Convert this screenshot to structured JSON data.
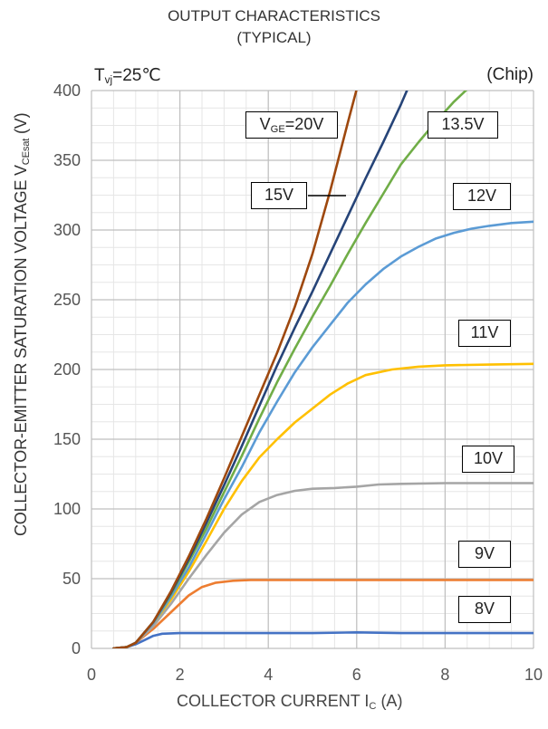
{
  "chart_data": {
    "type": "line",
    "title": "OUTPUT CHARACTERISTICS",
    "subtitle": "(TYPICAL)",
    "condition": {
      "prefix": "T",
      "sub": "vj",
      "suffix": "=25℃"
    },
    "note": "(Chip)",
    "xlabel": {
      "main": "COLLECTOR CURRENT  I",
      "sub": "C",
      "unit": " (A)"
    },
    "ylabel": {
      "main": "COLLECTOR-EMITTER SATURATION VOLTAGE V",
      "sub": "CEsat",
      "unit": " (V)"
    },
    "xlim": [
      0,
      10
    ],
    "ylim": [
      0,
      400
    ],
    "xticks": [
      0,
      2,
      4,
      6,
      8,
      10
    ],
    "yticks": [
      0,
      50,
      100,
      150,
      200,
      250,
      300,
      350,
      400
    ],
    "grid": true,
    "series": [
      {
        "name": "8V",
        "color": "#4472C4",
        "points": [
          [
            0.5,
            0
          ],
          [
            0.8,
            1
          ],
          [
            1.0,
            3
          ],
          [
            1.2,
            6
          ],
          [
            1.4,
            9
          ],
          [
            1.6,
            10.5
          ],
          [
            2.0,
            11
          ],
          [
            3,
            11
          ],
          [
            4,
            11
          ],
          [
            5,
            11
          ],
          [
            6,
            11.5
          ],
          [
            7,
            11
          ],
          [
            8,
            11
          ],
          [
            9,
            11
          ],
          [
            10,
            11
          ]
        ]
      },
      {
        "name": "9V",
        "color": "#ED7D31",
        "points": [
          [
            0.5,
            0
          ],
          [
            0.8,
            1
          ],
          [
            1.0,
            4
          ],
          [
            1.4,
            14
          ],
          [
            1.8,
            26
          ],
          [
            2.2,
            38
          ],
          [
            2.5,
            44
          ],
          [
            2.8,
            47
          ],
          [
            3.2,
            48.5
          ],
          [
            3.6,
            49
          ],
          [
            4,
            49
          ],
          [
            5,
            49
          ],
          [
            6,
            49
          ],
          [
            7,
            49
          ],
          [
            8,
            49
          ],
          [
            9,
            49
          ],
          [
            10,
            49
          ]
        ]
      },
      {
        "name": "10V",
        "color": "#A5A5A5",
        "points": [
          [
            0.5,
            0
          ],
          [
            0.8,
            1
          ],
          [
            1.0,
            4
          ],
          [
            1.4,
            16
          ],
          [
            1.8,
            32
          ],
          [
            2.2,
            50
          ],
          [
            2.6,
            67
          ],
          [
            3.0,
            83
          ],
          [
            3.4,
            96
          ],
          [
            3.8,
            105
          ],
          [
            4.2,
            110
          ],
          [
            4.6,
            113
          ],
          [
            5,
            114.5
          ],
          [
            5.5,
            115
          ],
          [
            6,
            116
          ],
          [
            6.5,
            117.5
          ],
          [
            7,
            118
          ],
          [
            8,
            118.5
          ],
          [
            9,
            118.5
          ],
          [
            10,
            118.5
          ]
        ]
      },
      {
        "name": "11V",
        "color": "#FFC000",
        "points": [
          [
            0.5,
            0
          ],
          [
            0.8,
            1
          ],
          [
            1.0,
            4
          ],
          [
            1.4,
            18
          ],
          [
            1.8,
            35
          ],
          [
            2.2,
            55
          ],
          [
            2.6,
            77
          ],
          [
            3.0,
            100
          ],
          [
            3.4,
            120
          ],
          [
            3.8,
            137
          ],
          [
            4.2,
            150
          ],
          [
            4.6,
            162
          ],
          [
            5,
            172
          ],
          [
            5.4,
            182
          ],
          [
            5.8,
            190
          ],
          [
            6.2,
            196
          ],
          [
            6.8,
            200
          ],
          [
            7.4,
            202
          ],
          [
            8,
            203
          ],
          [
            9,
            203.5
          ],
          [
            10,
            204
          ]
        ]
      },
      {
        "name": "12V",
        "color": "#5B9BD5",
        "points": [
          [
            0.5,
            0
          ],
          [
            0.8,
            1
          ],
          [
            1.0,
            4
          ],
          [
            1.4,
            18
          ],
          [
            1.8,
            37
          ],
          [
            2.2,
            58
          ],
          [
            2.6,
            82
          ],
          [
            3.0,
            107
          ],
          [
            3.4,
            130
          ],
          [
            3.8,
            155
          ],
          [
            4.2,
            177
          ],
          [
            4.6,
            198
          ],
          [
            5.0,
            216
          ],
          [
            5.4,
            232
          ],
          [
            5.8,
            248
          ],
          [
            6.2,
            261
          ],
          [
            6.6,
            272
          ],
          [
            7.0,
            281
          ],
          [
            7.4,
            288
          ],
          [
            7.8,
            294
          ],
          [
            8.2,
            298
          ],
          [
            8.6,
            301
          ],
          [
            9,
            303
          ],
          [
            9.5,
            305
          ],
          [
            10,
            306
          ]
        ]
      },
      {
        "name": "13.5V",
        "color": "#70AD47",
        "points": [
          [
            0.5,
            0
          ],
          [
            0.8,
            1
          ],
          [
            1.0,
            4
          ],
          [
            1.4,
            19
          ],
          [
            1.8,
            39
          ],
          [
            2.2,
            62
          ],
          [
            2.6,
            86
          ],
          [
            3.0,
            112
          ],
          [
            3.4,
            138
          ],
          [
            3.8,
            165
          ],
          [
            4.2,
            191
          ],
          [
            4.6,
            215
          ],
          [
            5.0,
            238
          ],
          [
            5.4,
            260
          ],
          [
            5.8,
            283
          ],
          [
            6.2,
            305
          ],
          [
            6.6,
            326
          ],
          [
            7.0,
            347
          ],
          [
            7.4,
            363
          ],
          [
            7.8,
            378
          ],
          [
            8.2,
            392
          ],
          [
            8.5,
            401
          ]
        ]
      },
      {
        "name": "15V",
        "color": "#264478",
        "points": [
          [
            0.5,
            0
          ],
          [
            0.8,
            1
          ],
          [
            1.0,
            4
          ],
          [
            1.4,
            19
          ],
          [
            1.8,
            40
          ],
          [
            2.2,
            64
          ],
          [
            2.6,
            90
          ],
          [
            3.0,
            117
          ],
          [
            3.4,
            145
          ],
          [
            3.8,
            174
          ],
          [
            4.2,
            203
          ],
          [
            4.6,
            230
          ],
          [
            5.0,
            256
          ],
          [
            5.4,
            283
          ],
          [
            5.8,
            310
          ],
          [
            6.2,
            337
          ],
          [
            6.6,
            363
          ],
          [
            7.0,
            390
          ],
          [
            7.15,
            401
          ]
        ]
      },
      {
        "name": "VGE=20V",
        "color": "#9E480E",
        "points": [
          [
            0.5,
            0
          ],
          [
            0.8,
            1
          ],
          [
            1.0,
            4
          ],
          [
            1.4,
            19
          ],
          [
            1.8,
            41
          ],
          [
            2.2,
            66
          ],
          [
            2.6,
            93
          ],
          [
            3.0,
            122
          ],
          [
            3.4,
            152
          ],
          [
            3.8,
            182
          ],
          [
            4.2,
            212
          ],
          [
            4.6,
            245
          ],
          [
            5.0,
            283
          ],
          [
            5.4,
            328
          ],
          [
            5.8,
            377
          ],
          [
            6.0,
            401
          ]
        ]
      }
    ],
    "labels": [
      {
        "text": "8V"
      },
      {
        "text": "9V"
      },
      {
        "text": "10V"
      },
      {
        "text": "11V"
      },
      {
        "text": "12V"
      },
      {
        "text": "13.5V"
      },
      {
        "text": "15V"
      },
      {
        "prefix": "V",
        "sub": "GE",
        "suffix": "=20V"
      }
    ]
  }
}
